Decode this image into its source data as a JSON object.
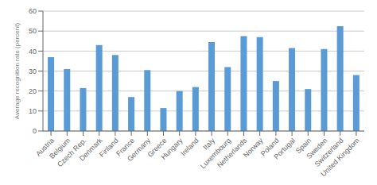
{
  "chart_data": {
    "type": "bar",
    "categories": [
      "Austria",
      "Belgium",
      "Czech Rep.",
      "Denmark",
      "Finland",
      "France",
      "Germany",
      "Greece",
      "Hungary",
      "Ireland",
      "Italy",
      "Luxembourg",
      "Netherlands",
      "Norway",
      "Poland",
      "Portugal",
      "Spain",
      "Sweden",
      "Switzerland",
      "United Kingdom"
    ],
    "values": [
      37,
      31,
      21.5,
      43,
      38,
      17,
      30.5,
      11.5,
      20,
      22,
      44.5,
      32,
      47.5,
      47,
      25,
      41.5,
      21,
      41,
      52.5,
      28
    ],
    "color": "#5b9bd5",
    "ylabel": "Average recognition rate (percent)",
    "ylim": [
      0,
      60
    ],
    "yticks": [
      0,
      10,
      20,
      30,
      40,
      50,
      60
    ],
    "grid": true
  }
}
